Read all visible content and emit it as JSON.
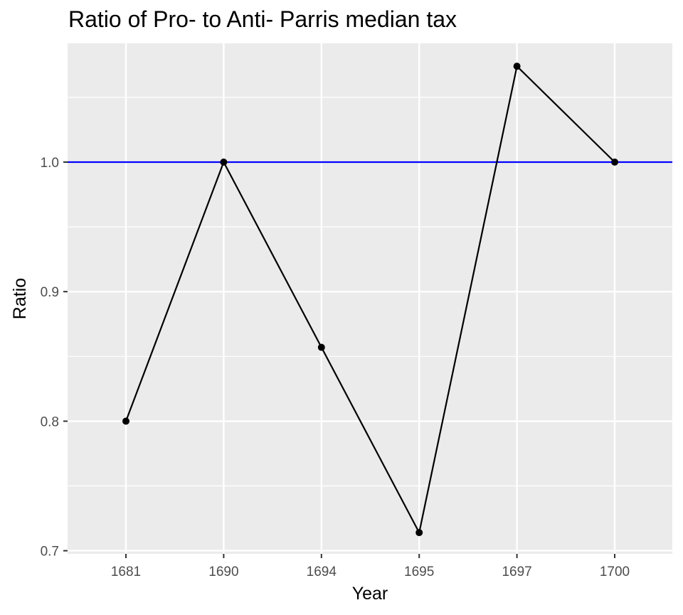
{
  "chart_data": {
    "type": "line",
    "title": "Ratio of Pro- to Anti- Parris median tax",
    "xlabel": "Year",
    "ylabel": "Ratio",
    "categories": [
      "1681",
      "1690",
      "1694",
      "1695",
      "1697",
      "1700"
    ],
    "series": [
      {
        "values": [
          0.8,
          1.0,
          0.857,
          0.714,
          1.074,
          1.0
        ],
        "color": "#000000",
        "marker": "circle"
      }
    ],
    "reference_line": {
      "y": 1.0,
      "color": "#0000ff"
    },
    "y_ticks": [
      0.7,
      0.8,
      0.9,
      1.0
    ],
    "y_tick_labels": [
      "0.7",
      "0.8",
      "0.9",
      "1.0"
    ],
    "ylim": [
      0.7,
      1.09
    ],
    "grid": true,
    "colors": {
      "panel_background": "#ebebeb",
      "grid": "#ffffff",
      "tick_text": "#4d4d4d"
    }
  }
}
